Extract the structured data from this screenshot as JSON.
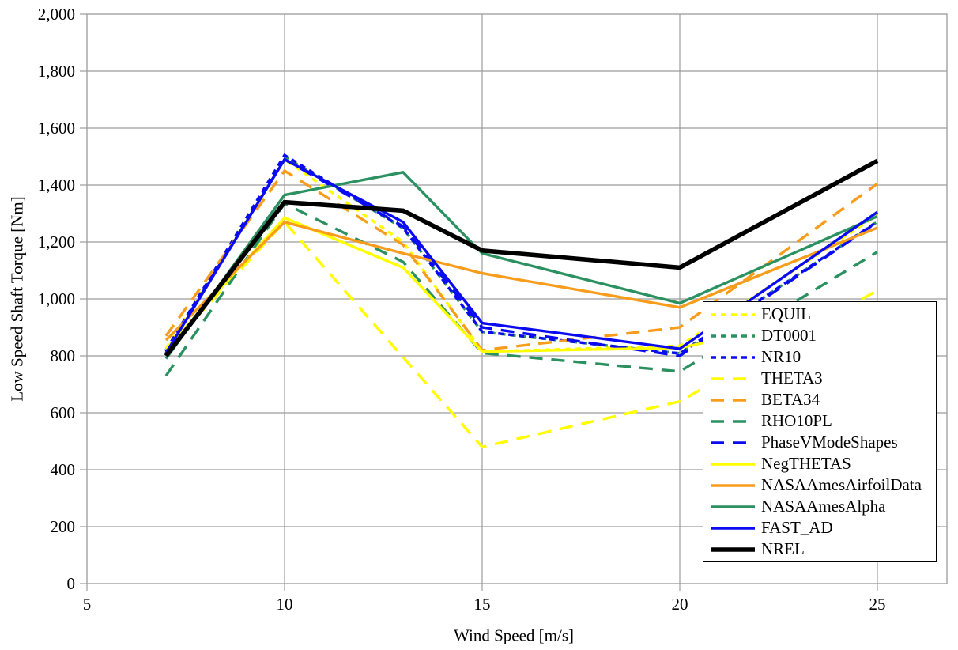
{
  "chart_data": {
    "type": "line",
    "title": "",
    "xlabel": "Wind Speed [m/s]",
    "ylabel": "Low Speed Shaft Torque [Nm]",
    "xlim": [
      5,
      26.8
    ],
    "ylim": [
      0,
      2000
    ],
    "xticks": [
      5,
      10,
      15,
      20,
      25
    ],
    "ytick_step": 200,
    "grid": true,
    "legend_position": "inside-right",
    "x": [
      7,
      10,
      13,
      15,
      20,
      25
    ],
    "series": [
      {
        "name": "EQUIL",
        "color": "#FFFF00",
        "style": "dotted",
        "width": 3.4,
        "values": [
          825,
          1490,
          1200,
          815,
          835,
          1295
        ]
      },
      {
        "name": "DT0001",
        "color": "#2C9160",
        "style": "dotted",
        "width": 3.4,
        "values": [
          820,
          1500,
          1248,
          884,
          809,
          1271
        ]
      },
      {
        "name": "NR10",
        "color": "#0B0BF2",
        "style": "dotted",
        "width": 3.4,
        "values": [
          820,
          1505,
          1250,
          885,
          808,
          1272
        ]
      },
      {
        "name": "THETA3",
        "color": "#FFFF00",
        "style": "dashed",
        "width": 3.4,
        "values": [
          820,
          1270,
          795,
          480,
          640,
          1030
        ]
      },
      {
        "name": "BETA34",
        "color": "#F89C1C",
        "style": "dashed",
        "width": 3.4,
        "values": [
          870,
          1450,
          1190,
          820,
          900,
          1405
        ]
      },
      {
        "name": "RHO10PL",
        "color": "#2C9160",
        "style": "dashed",
        "width": 3.4,
        "values": [
          730,
          1335,
          1130,
          810,
          745,
          1165
        ]
      },
      {
        "name": "PhaseVModeShapes",
        "color": "#0B0BF2",
        "style": "dashed",
        "width": 3.4,
        "values": [
          815,
          1490,
          1255,
          900,
          800,
          1270
        ]
      },
      {
        "name": "NegTHETAS",
        "color": "#FFFF00",
        "style": "solid",
        "width": 3.4,
        "values": [
          825,
          1285,
          1110,
          815,
          828,
          975
        ]
      },
      {
        "name": "NASAAmesAirfoilData",
        "color": "#F89C1C",
        "style": "solid",
        "width": 3.4,
        "values": [
          855,
          1270,
          1160,
          1090,
          970,
          1250
        ]
      },
      {
        "name": "NASAAmesAlpha",
        "color": "#2C9160",
        "style": "solid",
        "width": 3.4,
        "values": [
          790,
          1365,
          1445,
          1160,
          985,
          1290
        ]
      },
      {
        "name": "FAST_AD",
        "color": "#0B0BF2",
        "style": "solid",
        "width": 3.4,
        "values": [
          810,
          1490,
          1270,
          915,
          825,
          1305
        ]
      },
      {
        "name": "NREL",
        "color": "#000000",
        "style": "solid",
        "width": 5.6,
        "values": [
          800,
          1340,
          1310,
          1170,
          1110,
          1485
        ]
      }
    ]
  },
  "colors": {
    "grid": "#9C9C9C",
    "plot_border": "#9C9C9C",
    "background": "#FFFFFF",
    "legend_border": "#000000",
    "text": "#000000"
  }
}
